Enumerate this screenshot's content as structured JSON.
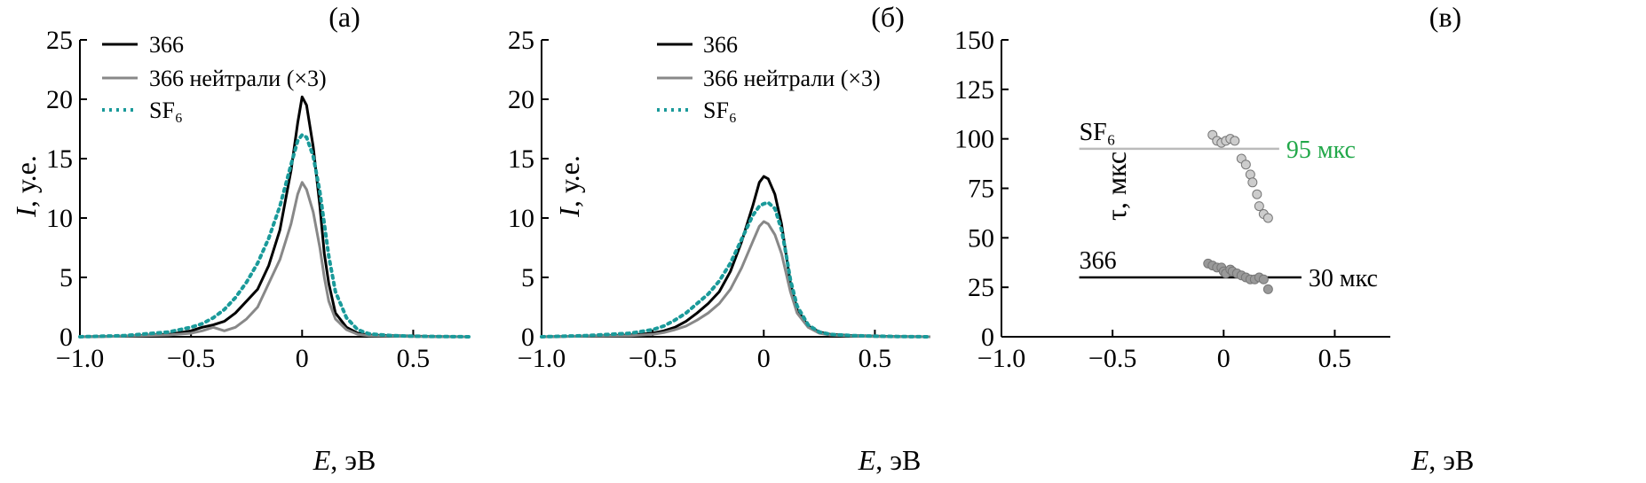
{
  "chart_data": [
    {
      "type": "line",
      "panel_label": "(а)",
      "xlabel_var": "E",
      "xlabel_unit": ", эВ",
      "ylabel_var": "I",
      "ylabel_unit": ", у.е.",
      "xlim": [
        -1.0,
        0.75
      ],
      "ylim": [
        0,
        25
      ],
      "xticks": [
        -1.0,
        -0.5,
        0,
        0.5
      ],
      "xtick_labels": [
        "−1.0",
        "−0.5",
        "0",
        "0.5"
      ],
      "yticks": [
        0,
        5,
        10,
        15,
        20,
        25
      ],
      "ytick_labels": [
        "0",
        "5",
        "10",
        "15",
        "20",
        "25"
      ],
      "legend_position": "top-left",
      "series": [
        {
          "name": "366",
          "color": "#000000",
          "style": "solid",
          "x": [
            -1.0,
            -0.8,
            -0.6,
            -0.5,
            -0.45,
            -0.4,
            -0.35,
            -0.3,
            -0.25,
            -0.2,
            -0.15,
            -0.1,
            -0.05,
            -0.02,
            0,
            0.02,
            0.05,
            0.08,
            0.1,
            0.12,
            0.15,
            0.2,
            0.25,
            0.3,
            0.4,
            0.5,
            0.6,
            0.75
          ],
          "y": [
            0,
            0.05,
            0.2,
            0.5,
            0.8,
            1.0,
            1.3,
            2.0,
            3.0,
            4.0,
            6.0,
            9.0,
            14.0,
            18.0,
            20.2,
            19.5,
            16.0,
            11.0,
            7.0,
            4.5,
            2.0,
            0.8,
            0.3,
            0.15,
            0.1,
            0.05,
            0.02,
            0
          ]
        },
        {
          "name": "366 нейтрали (×3)",
          "color": "#888888",
          "style": "solid",
          "x": [
            -1.0,
            -0.8,
            -0.6,
            -0.5,
            -0.45,
            -0.4,
            -0.35,
            -0.3,
            -0.25,
            -0.2,
            -0.15,
            -0.1,
            -0.05,
            -0.02,
            0,
            0.02,
            0.05,
            0.08,
            0.1,
            0.12,
            0.15,
            0.2,
            0.25,
            0.3,
            0.4,
            0.5,
            0.6,
            0.75
          ],
          "y": [
            0,
            0.05,
            0.15,
            0.3,
            0.5,
            0.8,
            0.5,
            0.8,
            1.5,
            2.5,
            4.5,
            6.5,
            9.5,
            12.0,
            13.0,
            12.4,
            10.5,
            7.5,
            5.0,
            3.0,
            1.5,
            0.6,
            0.2,
            0.1,
            0.05,
            0.02,
            0.01,
            0
          ]
        },
        {
          "name": "SF₆",
          "color": "#1a9a9a",
          "style": "dotted",
          "x": [
            -1.0,
            -0.8,
            -0.6,
            -0.5,
            -0.45,
            -0.4,
            -0.35,
            -0.3,
            -0.25,
            -0.2,
            -0.15,
            -0.1,
            -0.05,
            -0.02,
            0,
            0.02,
            0.05,
            0.08,
            0.1,
            0.12,
            0.15,
            0.2,
            0.25,
            0.3,
            0.4,
            0.5,
            0.6,
            0.75
          ],
          "y": [
            0,
            0.1,
            0.4,
            0.8,
            1.1,
            1.6,
            2.3,
            3.3,
            4.6,
            6.2,
            8.3,
            11.0,
            14.5,
            16.5,
            17.0,
            16.8,
            15.2,
            12.2,
            9.5,
            6.8,
            3.8,
            1.6,
            0.6,
            0.25,
            0.1,
            0.05,
            0.02,
            0
          ]
        }
      ]
    },
    {
      "type": "line",
      "panel_label": "(б)",
      "xlabel_var": "E",
      "xlabel_unit": ", эВ",
      "ylabel_var": "I",
      "ylabel_unit": ", у.е.",
      "xlim": [
        -1.0,
        0.75
      ],
      "ylim": [
        0,
        25
      ],
      "xticks": [
        -1.0,
        -0.5,
        0,
        0.5
      ],
      "xtick_labels": [
        "−1.0",
        "−0.5",
        "0",
        "0.5"
      ],
      "yticks": [
        0,
        5,
        10,
        15,
        20,
        25
      ],
      "ytick_labels": [
        "0",
        "5",
        "10",
        "15",
        "20",
        "25"
      ],
      "legend_position": "top-left",
      "series": [
        {
          "name": "366",
          "color": "#000000",
          "style": "solid",
          "x": [
            -1.0,
            -0.8,
            -0.6,
            -0.5,
            -0.45,
            -0.4,
            -0.35,
            -0.3,
            -0.25,
            -0.2,
            -0.15,
            -0.1,
            -0.05,
            -0.02,
            0,
            0.02,
            0.05,
            0.08,
            0.1,
            0.12,
            0.15,
            0.2,
            0.25,
            0.3,
            0.4,
            0.5,
            0.6,
            0.75
          ],
          "y": [
            0,
            0.05,
            0.15,
            0.3,
            0.5,
            0.8,
            1.3,
            2.0,
            2.8,
            3.8,
            5.5,
            8.0,
            11.0,
            13.0,
            13.5,
            13.3,
            12.0,
            9.5,
            7.0,
            4.5,
            2.3,
            0.9,
            0.4,
            0.2,
            0.1,
            0.05,
            0.02,
            0
          ]
        },
        {
          "name": "366 нейтрали (×3)",
          "color": "#888888",
          "style": "solid",
          "x": [
            -1.0,
            -0.8,
            -0.6,
            -0.5,
            -0.45,
            -0.4,
            -0.35,
            -0.3,
            -0.25,
            -0.2,
            -0.15,
            -0.1,
            -0.05,
            -0.02,
            0,
            0.02,
            0.05,
            0.08,
            0.1,
            0.12,
            0.15,
            0.2,
            0.25,
            0.3,
            0.4,
            0.5,
            0.6,
            0.75
          ],
          "y": [
            0,
            0.05,
            0.1,
            0.2,
            0.35,
            0.6,
            0.9,
            1.4,
            2.0,
            2.8,
            4.0,
            5.8,
            8.0,
            9.3,
            9.7,
            9.5,
            8.6,
            7.0,
            5.4,
            3.8,
            2.0,
            0.8,
            0.3,
            0.15,
            0.05,
            0.02,
            0.01,
            0
          ]
        },
        {
          "name": "SF₆",
          "color": "#1a9a9a",
          "style": "dotted",
          "x": [
            -1.0,
            -0.8,
            -0.6,
            -0.5,
            -0.45,
            -0.4,
            -0.35,
            -0.3,
            -0.25,
            -0.2,
            -0.15,
            -0.1,
            -0.05,
            -0.02,
            0,
            0.02,
            0.05,
            0.08,
            0.1,
            0.12,
            0.15,
            0.2,
            0.25,
            0.3,
            0.4,
            0.5,
            0.6,
            0.75
          ],
          "y": [
            0,
            0.1,
            0.3,
            0.6,
            0.9,
            1.4,
            2.0,
            2.8,
            3.6,
            4.7,
            6.2,
            8.2,
            10.2,
            11.0,
            11.2,
            11.3,
            10.8,
            9.0,
            7.0,
            4.8,
            2.6,
            1.0,
            0.4,
            0.2,
            0.1,
            0.05,
            0.02,
            0
          ]
        }
      ]
    },
    {
      "type": "scatter",
      "panel_label": "(в)",
      "xlabel_var": "E",
      "xlabel_unit": ", эВ",
      "ylabel_text": "τ, мкс",
      "xlim": [
        -1.0,
        0.75
      ],
      "ylim": [
        0,
        150
      ],
      "xticks": [
        -1.0,
        -0.5,
        0,
        0.5
      ],
      "xtick_labels": [
        "−1.0",
        "−0.5",
        "0",
        "0.5"
      ],
      "yticks": [
        0,
        25,
        50,
        75,
        100,
        125,
        150
      ],
      "ytick_labels": [
        "0",
        "25",
        "50",
        "75",
        "100",
        "125",
        "150"
      ],
      "hlines": [
        {
          "name": "SF₆",
          "value": 95,
          "x_range": [
            -0.65,
            0.25
          ],
          "color": "#bbbbbb",
          "label": "95 мкс",
          "label_color": "#22a84a"
        },
        {
          "name": "366",
          "value": 30,
          "x_range": [
            -0.65,
            0.35
          ],
          "color": "#000000",
          "label": "30 мкс",
          "label_color": "#000000"
        }
      ],
      "series": [
        {
          "name": "SF₆",
          "color": "#cccccc",
          "x": [
            -0.05,
            -0.03,
            -0.01,
            0.01,
            0.03,
            0.05,
            0.08,
            0.1,
            0.12,
            0.13,
            0.15,
            0.16,
            0.18,
            0.2
          ],
          "y": [
            102,
            99,
            98,
            99,
            100,
            99,
            90,
            87,
            82,
            78,
            72,
            66,
            62,
            60
          ]
        },
        {
          "name": "366",
          "color": "#999999",
          "x": [
            -0.07,
            -0.05,
            -0.03,
            -0.01,
            0.0,
            0.01,
            0.03,
            0.04,
            0.06,
            0.08,
            0.1,
            0.12,
            0.14,
            0.16,
            0.18,
            0.2
          ],
          "y": [
            37,
            36,
            35,
            35,
            33,
            32,
            34,
            33,
            32,
            31,
            30,
            29,
            29,
            30,
            29,
            24
          ]
        }
      ]
    }
  ]
}
